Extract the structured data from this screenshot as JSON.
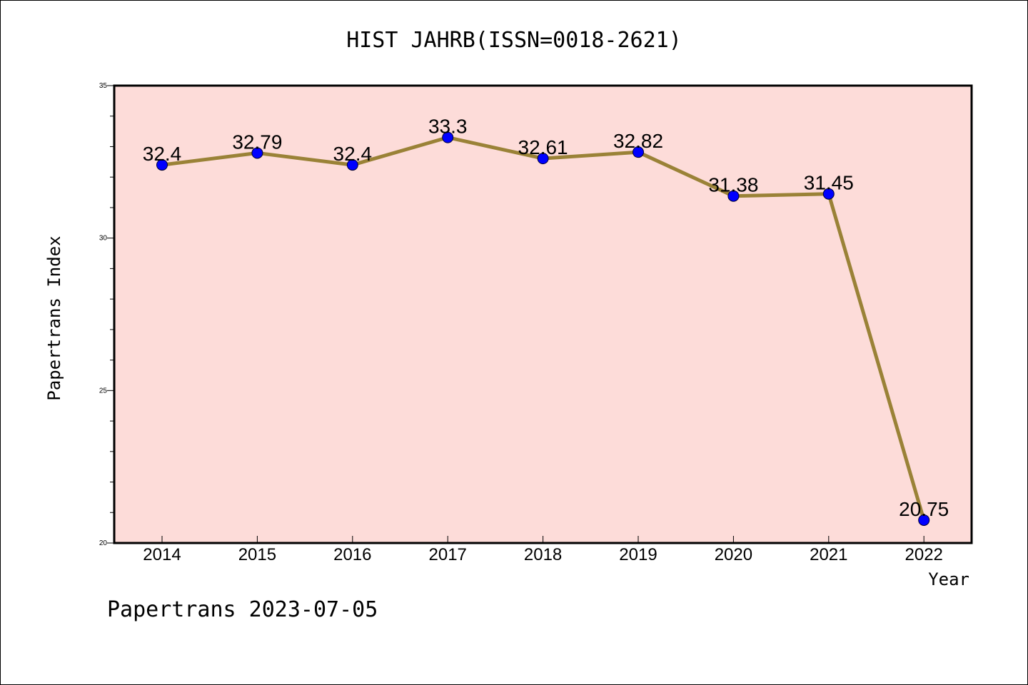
{
  "chart_data": {
    "type": "line",
    "title": "HIST JAHRB(ISSN=0018-2621)",
    "xlabel": "Year",
    "ylabel": "Papertrans Index",
    "categories": [
      "2014",
      "2015",
      "2016",
      "2017",
      "2018",
      "2019",
      "2020",
      "2021",
      "2022"
    ],
    "values": [
      32.4,
      32.79,
      32.4,
      33.3,
      32.61,
      32.82,
      31.38,
      31.45,
      20.75
    ],
    "data_labels": [
      "32.4",
      "32.79",
      "32.4",
      "33.3",
      "32.61",
      "32.82",
      "31.38",
      "31.45",
      "20.75"
    ],
    "ylim": [
      20,
      35
    ],
    "yticks": [
      "20",
      "25",
      "30",
      "35"
    ],
    "grid": false,
    "colors": {
      "plot_background": "#fddcd9",
      "line": "#9a8237",
      "marker": "#0000ff",
      "axes": "#000000"
    }
  },
  "footer": "Papertrans 2023-07-05"
}
